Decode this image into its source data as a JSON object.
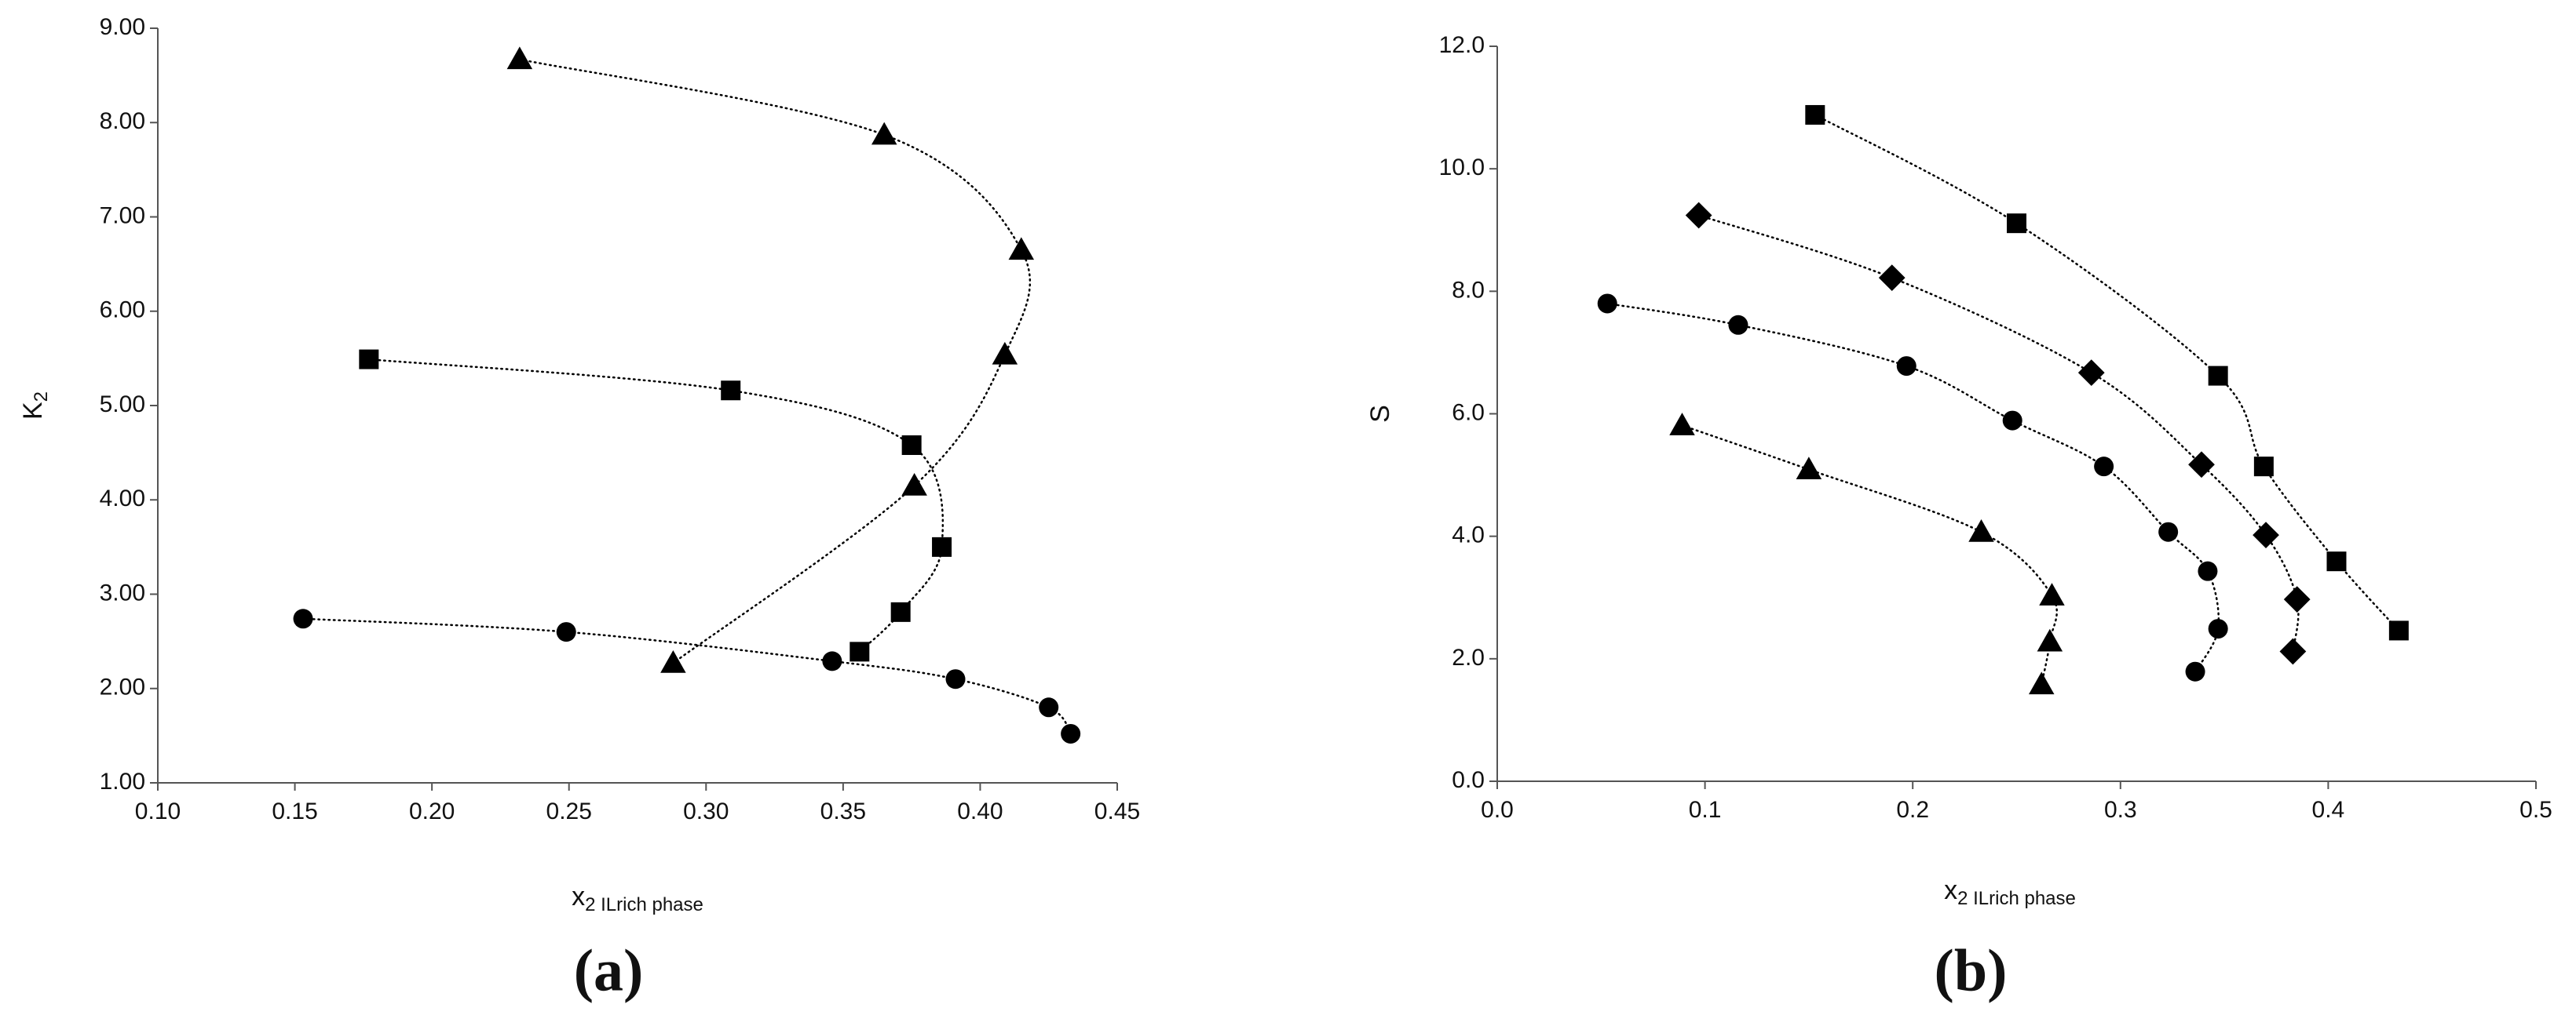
{
  "chart_data": [
    {
      "type": "scatter",
      "panel_label": "(a)",
      "xlabel": {
        "main": "x",
        "sub": "2 ILrich phase"
      },
      "ylabel": {
        "main": "K",
        "sub": "2"
      },
      "xlim": [
        0.1,
        0.45
      ],
      "xticks": [
        {
          "value": 0.1,
          "label": "0.10"
        },
        {
          "value": 0.15,
          "label": "0.15"
        },
        {
          "value": 0.2,
          "label": "0.20"
        },
        {
          "value": 0.25,
          "label": "0.25"
        },
        {
          "value": 0.3,
          "label": "0.30"
        },
        {
          "value": 0.35,
          "label": "0.35"
        },
        {
          "value": 0.4,
          "label": "0.40"
        },
        {
          "value": 0.45,
          "label": "0.45"
        }
      ],
      "ylim": [
        1,
        9
      ],
      "yticks": [
        {
          "value": 1,
          "label": "1.00"
        },
        {
          "value": 2,
          "label": "2.00"
        },
        {
          "value": 3,
          "label": "3.00"
        },
        {
          "value": 4,
          "label": "4.00"
        },
        {
          "value": 5,
          "label": "5.00"
        },
        {
          "value": 6,
          "label": "6.00"
        },
        {
          "value": 7,
          "label": "7.00"
        },
        {
          "value": 8,
          "label": "8.00"
        },
        {
          "value": 9,
          "label": "9.00"
        }
      ],
      "line_style": "dotted",
      "series": [
        {
          "marker": "triangle",
          "color": "#000000",
          "x": [
            0.232,
            0.365,
            0.415,
            0.409,
            0.376,
            0.288
          ],
          "values": [
            8.67,
            7.87,
            6.65,
            5.54,
            4.15,
            2.27
          ]
        },
        {
          "marker": "square",
          "color": "#000000",
          "x": [
            0.177,
            0.309,
            0.375,
            0.386,
            0.371,
            0.356
          ],
          "values": [
            5.49,
            5.16,
            4.58,
            3.5,
            2.81,
            2.39
          ]
        },
        {
          "marker": "circle",
          "color": "#000000",
          "x": [
            0.153,
            0.249,
            0.346,
            0.391,
            0.425,
            0.433
          ],
          "values": [
            2.74,
            2.6,
            2.29,
            2.1,
            1.8,
            1.52
          ]
        }
      ]
    },
    {
      "type": "scatter",
      "panel_label": "(b)",
      "xlabel": {
        "main": "x",
        "sub": "2 ILrich phase"
      },
      "ylabel": {
        "main": "S",
        "sub": ""
      },
      "xlim": [
        0,
        0.5
      ],
      "xticks": [
        {
          "value": 0,
          "label": "0.0"
        },
        0.1,
        0.2,
        0.3,
        0.4,
        0.5
      ],
      "ylim": [
        0,
        12
      ],
      "yticks": [
        {
          "value": 0,
          "label": "0.0"
        },
        {
          "value": 2,
          "label": "2.0"
        },
        {
          "value": 4,
          "label": "4.0"
        },
        {
          "value": 6,
          "label": "6.0"
        },
        {
          "value": 8,
          "label": "8.0"
        },
        {
          "value": 10,
          "label": "10.0"
        },
        {
          "value": 12,
          "label": "12.0"
        }
      ],
      "line_style": "dotted",
      "series": [
        {
          "marker": "square",
          "color": "#000000",
          "x": [
            0.153,
            0.25,
            0.347,
            0.369,
            0.404,
            0.434
          ],
          "values": [
            10.88,
            9.11,
            6.62,
            5.14,
            3.59,
            2.46
          ]
        },
        {
          "marker": "diamond",
          "color": "#000000",
          "x": [
            0.097,
            0.19,
            0.286,
            0.339,
            0.37,
            0.385,
            0.383
          ],
          "values": [
            9.24,
            8.22,
            6.67,
            5.17,
            4.02,
            2.97,
            2.12
          ]
        },
        {
          "marker": "circle",
          "color": "#000000",
          "x": [
            0.053,
            0.116,
            0.197,
            0.248,
            0.292,
            0.323,
            0.342,
            0.347,
            0.336
          ],
          "values": [
            7.8,
            7.45,
            6.78,
            5.89,
            5.14,
            4.07,
            3.43,
            2.49,
            1.79
          ]
        },
        {
          "marker": "triangle",
          "color": "#000000",
          "x": [
            0.089,
            0.15,
            0.233,
            0.267,
            0.266,
            0.262
          ],
          "values": [
            5.81,
            5.09,
            4.07,
            3.03,
            2.28,
            1.58
          ]
        }
      ]
    }
  ]
}
